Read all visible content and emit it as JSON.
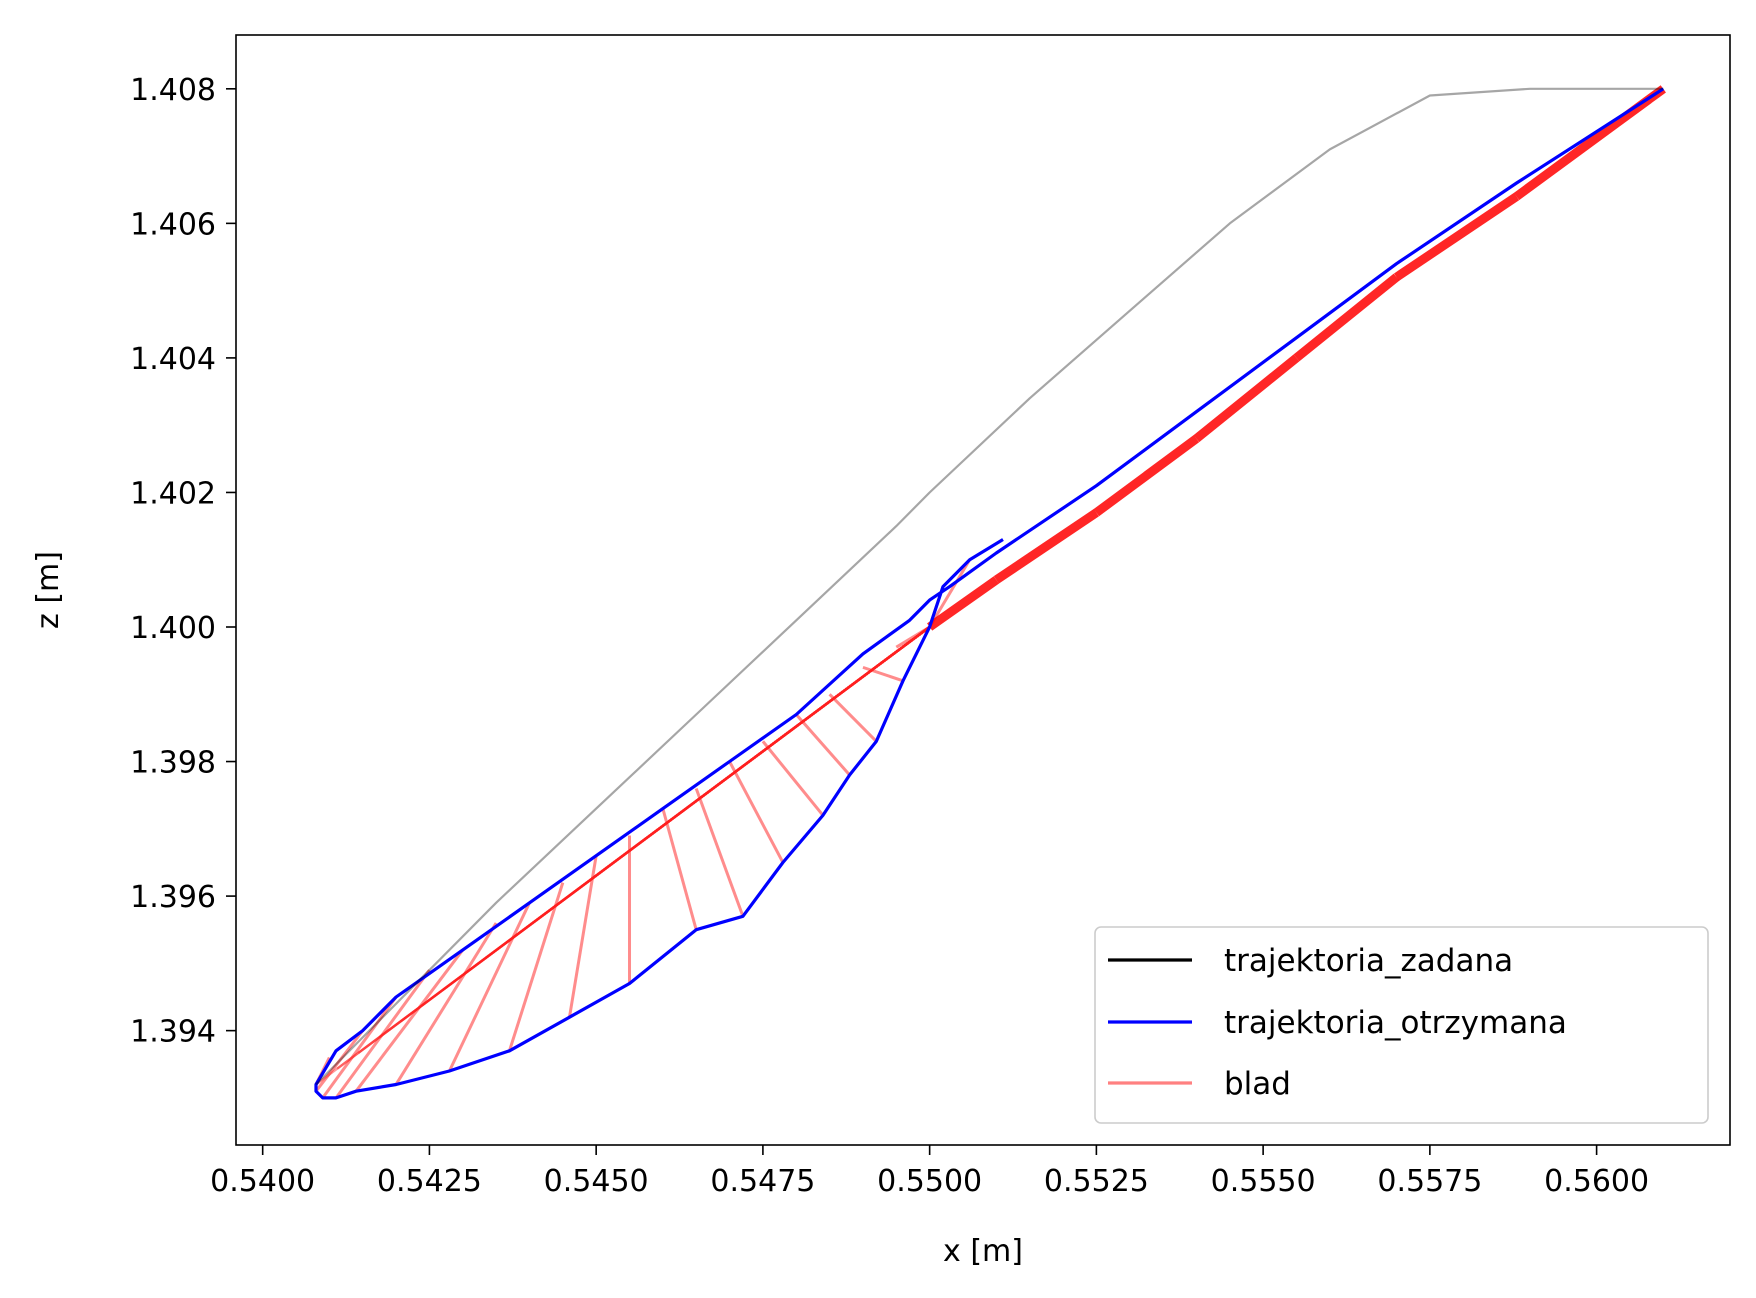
{
  "chart_data": {
    "type": "line",
    "title": "",
    "xlabel": "x [m]",
    "ylabel": "z [m]",
    "xlim": [
      0.5396,
      0.562
    ],
    "ylim": [
      1.3923,
      1.4088
    ],
    "xticks": [
      0.54,
      0.5425,
      0.545,
      0.5475,
      0.55,
      0.5525,
      0.555,
      0.5575,
      0.56
    ],
    "xtick_labels": [
      "0.5400",
      "0.5425",
      "0.5450",
      "0.5475",
      "0.5500",
      "0.5525",
      "0.5550",
      "0.5575",
      "0.5600"
    ],
    "yticks": [
      1.394,
      1.396,
      1.398,
      1.4,
      1.402,
      1.404,
      1.406,
      1.408
    ],
    "ytick_labels": [
      "1.394",
      "1.396",
      "1.398",
      "1.400",
      "1.402",
      "1.404",
      "1.406",
      "1.408"
    ],
    "grid": false,
    "legend_position": "lower-right",
    "series": [
      {
        "name": "trajektoria_zadana",
        "color": "#000000",
        "x": [
          0.5408,
          0.542,
          0.5435,
          0.545,
          0.5465,
          0.548,
          0.5495,
          0.55,
          0.5515,
          0.553,
          0.5545,
          0.556,
          0.5575,
          0.559,
          0.561
        ],
        "y": [
          1.3932,
          1.3944,
          1.3959,
          1.3973,
          1.3987,
          1.4001,
          1.4015,
          1.402,
          1.4034,
          1.4047,
          1.406,
          1.4071,
          1.4079,
          1.408,
          1.408
        ]
      },
      {
        "name": "trajektoria_otrzymana",
        "color": "#0000ff",
        "x": [
          0.5511,
          0.5506,
          0.5502,
          0.55,
          0.5496,
          0.5492,
          0.5488,
          0.5484,
          0.5478,
          0.5472,
          0.5465,
          0.5455,
          0.5446,
          0.5437,
          0.5428,
          0.542,
          0.5414,
          0.5411,
          0.5409,
          0.5408,
          0.5408,
          0.5411,
          0.5415,
          0.542,
          0.543,
          0.544,
          0.545,
          0.546,
          0.547,
          0.548,
          0.549,
          0.5497,
          0.55,
          0.5503,
          0.551,
          0.5525,
          0.554,
          0.5555,
          0.557,
          0.5588,
          0.561
        ],
        "y": [
          1.4013,
          1.401,
          1.4006,
          1.4,
          1.3992,
          1.3983,
          1.3978,
          1.3972,
          1.3965,
          1.3957,
          1.3955,
          1.3947,
          1.3942,
          1.3937,
          1.3934,
          1.3932,
          1.3931,
          1.393,
          1.393,
          1.3931,
          1.3932,
          1.3937,
          1.394,
          1.3945,
          1.3952,
          1.3959,
          1.3966,
          1.3973,
          1.398,
          1.3987,
          1.3996,
          1.4001,
          1.4004,
          1.4006,
          1.4011,
          1.4021,
          1.4032,
          1.4043,
          1.4054,
          1.4066,
          1.408
        ]
      },
      {
        "name": "blad",
        "color": "#ff8080",
        "segments_description": "",
        "from": {
          "x": [
            0.5408,
            0.5408,
            0.5409,
            0.5411,
            0.5414,
            0.542,
            0.5428,
            0.5437,
            0.5446,
            0.5455,
            0.5465,
            0.5472,
            0.5478,
            0.5484,
            0.5488,
            0.5492,
            0.5496,
            0.55,
            0.5502,
            0.5506
          ],
          "y": [
            1.3932,
            1.3931,
            1.393,
            1.393,
            1.3931,
            1.3932,
            1.3934,
            1.3937,
            1.3942,
            1.3947,
            1.3955,
            1.3957,
            1.3965,
            1.3972,
            1.3978,
            1.3983,
            1.3992,
            1.4,
            1.4006,
            1.401
          ]
        },
        "to": {
          "x": [
            0.541,
            0.5415,
            0.542,
            0.5425,
            0.543,
            0.5435,
            0.544,
            0.5445,
            0.545,
            0.5455,
            0.546,
            0.5465,
            0.547,
            0.5475,
            0.548,
            0.5485,
            0.549,
            0.5495,
            0.55,
            0.55
          ],
          "y": [
            1.3936,
            1.394,
            1.3945,
            1.3949,
            1.3952,
            1.3956,
            1.3959,
            1.3962,
            1.3966,
            1.3969,
            1.3973,
            1.3976,
            1.398,
            1.3983,
            1.3987,
            1.399,
            1.3994,
            1.3997,
            1.4,
            1.4
          ]
        },
        "x2": [
          0.55,
          0.551,
          0.5525,
          0.554,
          0.5555,
          0.557,
          0.5588,
          0.561
        ],
        "y2": [
          1.4,
          1.4007,
          1.4017,
          1.4028,
          1.404,
          1.4052,
          1.4064,
          1.408
        ]
      }
    ]
  }
}
